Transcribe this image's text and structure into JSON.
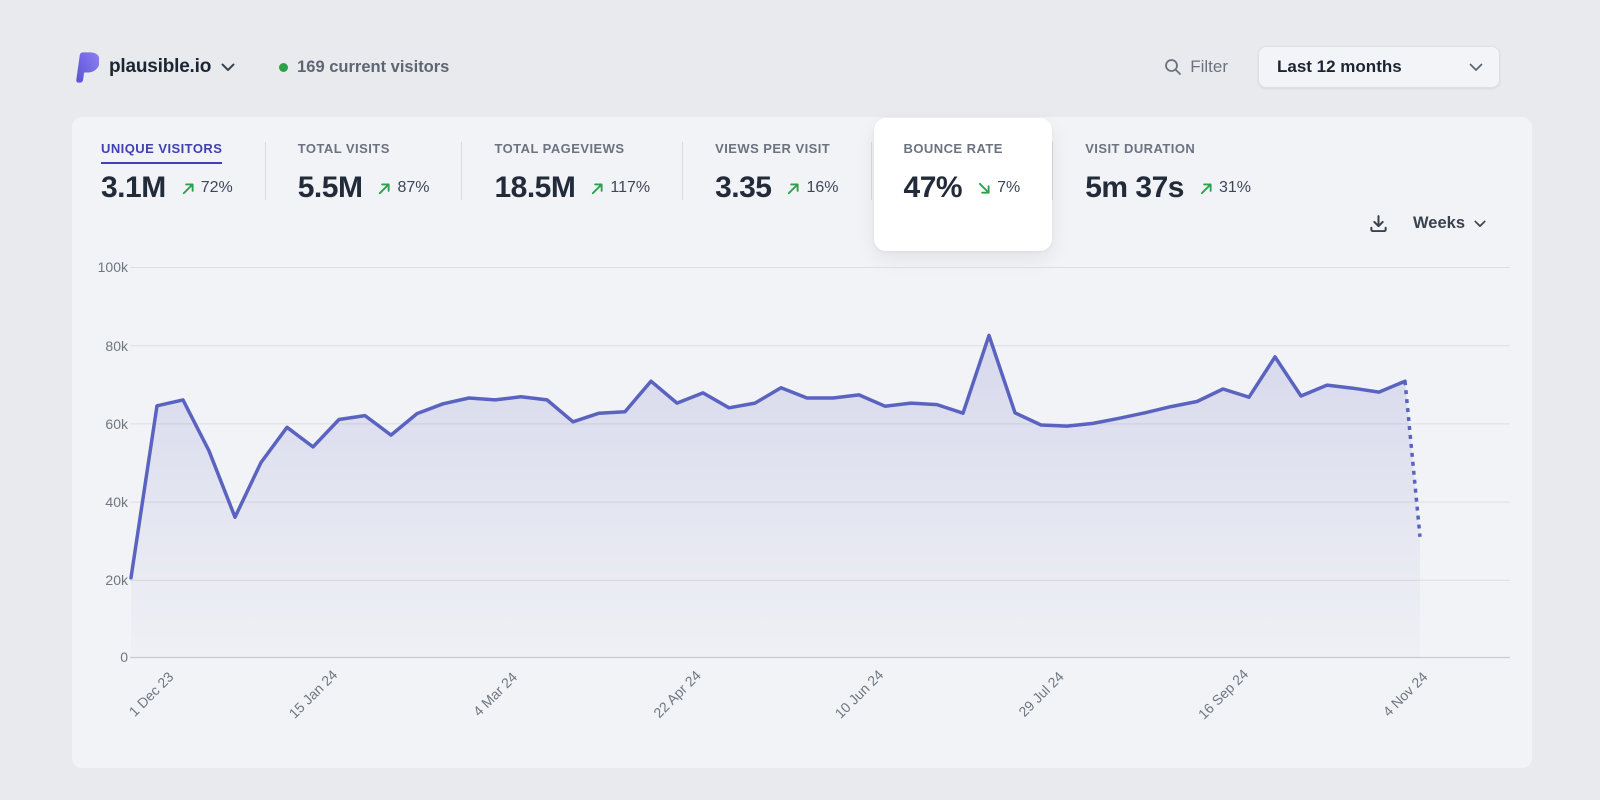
{
  "header": {
    "site_name": "plausible.io",
    "current_visitors": "169 current visitors",
    "filter_label": "Filter",
    "date_range": "Last 12 months"
  },
  "stats": [
    {
      "label": "UNIQUE VISITORS",
      "value": "3.1M",
      "change": "72%",
      "direction": "up",
      "active": true
    },
    {
      "label": "TOTAL VISITS",
      "value": "5.5M",
      "change": "87%",
      "direction": "up"
    },
    {
      "label": "TOTAL PAGEVIEWS",
      "value": "18.5M",
      "change": "117%",
      "direction": "up"
    },
    {
      "label": "VIEWS PER VISIT",
      "value": "3.35",
      "change": "16%",
      "direction": "up"
    },
    {
      "label": "BOUNCE RATE",
      "value": "47%",
      "change": "7%",
      "direction": "down",
      "highlighted": true
    },
    {
      "label": "VISIT DURATION",
      "value": "5m 37s",
      "change": "31%",
      "direction": "up"
    }
  ],
  "chart_controls": {
    "interval_label": "Weeks"
  },
  "icons": {
    "logo": "plausible-logo",
    "site_switcher": "chevron-down-icon",
    "filter": "search-icon",
    "date_range": "chevron-down-icon",
    "export": "download-icon",
    "interval": "chevron-down-icon",
    "trend_up": "arrow-up-right-icon",
    "trend_down": "arrow-down-right-icon"
  },
  "colors": {
    "page_bg": "#e9eaee",
    "card_bg": "#f2f3f6",
    "accent_indigo": "#4040b2",
    "trend_green": "#2ba14c",
    "text_dark": "#222b3a",
    "text_gray": "#6b7280"
  },
  "chart_data": {
    "type": "area",
    "title": "Unique visitors per week, last 12 months",
    "interval": "Weeks",
    "x_tick_labels": [
      "1 Dec 23",
      "15 Jan 24",
      "4 Mar 24",
      "22 Apr 24",
      "10 Jun 24",
      "29 Jul 24",
      "16 Sep 24",
      "4 Nov 24"
    ],
    "x_tick_weeks": [
      0,
      7,
      14,
      21,
      28,
      35,
      42,
      49
    ],
    "y_tick_labels": [
      "100k",
      "80k",
      "60k",
      "40k",
      "20k",
      "0"
    ],
    "ylim": [
      0,
      100000
    ],
    "grid": true,
    "legend": "none",
    "values_k": [
      20.5,
      64.5,
      66,
      53,
      36,
      50,
      59,
      54,
      61,
      62,
      57,
      62.5,
      65,
      66.5,
      66,
      66.8,
      66,
      60.4,
      62.6,
      63,
      70.8,
      65.2,
      67.8,
      64,
      65.2,
      69.1,
      66.5,
      66.5,
      67.3,
      64.4,
      65.2,
      64.8,
      62.6,
      82.5,
      62.7,
      59.6,
      59.3,
      60,
      61.3,
      62.7,
      64.3,
      65.6,
      68.8,
      66.7,
      77,
      67,
      69.8,
      69,
      68,
      70.8
    ],
    "dashed_tail_value_k": 31,
    "line_color": "#5b63c0",
    "fill_top": "rgba(91,99,192,0.18)",
    "fill_bottom": "rgba(91,99,192,0.02)"
  }
}
